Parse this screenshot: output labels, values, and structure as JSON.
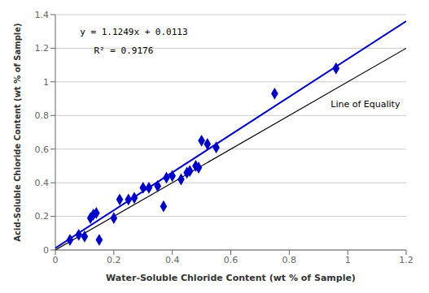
{
  "chart_data": {
    "type": "scatter",
    "xlabel": "Water-Soluble Chloride Content (wt % of Sample)",
    "ylabel": "Acid-Soluble Chloride Content (wt % of Sample)",
    "xlim": [
      0,
      1.2
    ],
    "ylim": [
      0,
      1.4
    ],
    "xticks": [
      0,
      0.2,
      0.4,
      0.6,
      0.8,
      1,
      1.2
    ],
    "yticks": [
      0,
      0.2,
      0.4,
      0.6,
      0.8,
      1,
      1.2,
      1.4
    ],
    "grid": "y",
    "series": [
      {
        "type": "line",
        "color": "#000000",
        "x": [
          0,
          1.2
        ],
        "values": [
          0,
          1.2
        ]
      },
      {
        "type": "line",
        "color": "#0000CC",
        "x": [
          0,
          1.2
        ],
        "values": [
          0.0113,
          1.36118
        ]
      },
      {
        "type": "scatter",
        "color": "#0000CC",
        "marker": "diamond",
        "x": [
          0.05,
          0.08,
          0.1,
          0.12,
          0.13,
          0.14,
          0.15,
          0.2,
          0.22,
          0.25,
          0.27,
          0.3,
          0.32,
          0.35,
          0.37,
          0.38,
          0.4,
          0.43,
          0.45,
          0.46,
          0.48,
          0.49,
          0.5,
          0.52,
          0.55,
          0.75,
          0.96
        ],
        "values": [
          0.06,
          0.09,
          0.08,
          0.19,
          0.21,
          0.22,
          0.06,
          0.19,
          0.3,
          0.3,
          0.31,
          0.37,
          0.37,
          0.38,
          0.26,
          0.43,
          0.44,
          0.42,
          0.46,
          0.47,
          0.5,
          0.49,
          0.65,
          0.63,
          0.61,
          0.93,
          1.08
        ]
      }
    ],
    "annotations": [
      "y = 1.1249x + 0.0113",
      "R² = 0.9176",
      "Line of Equality"
    ]
  }
}
